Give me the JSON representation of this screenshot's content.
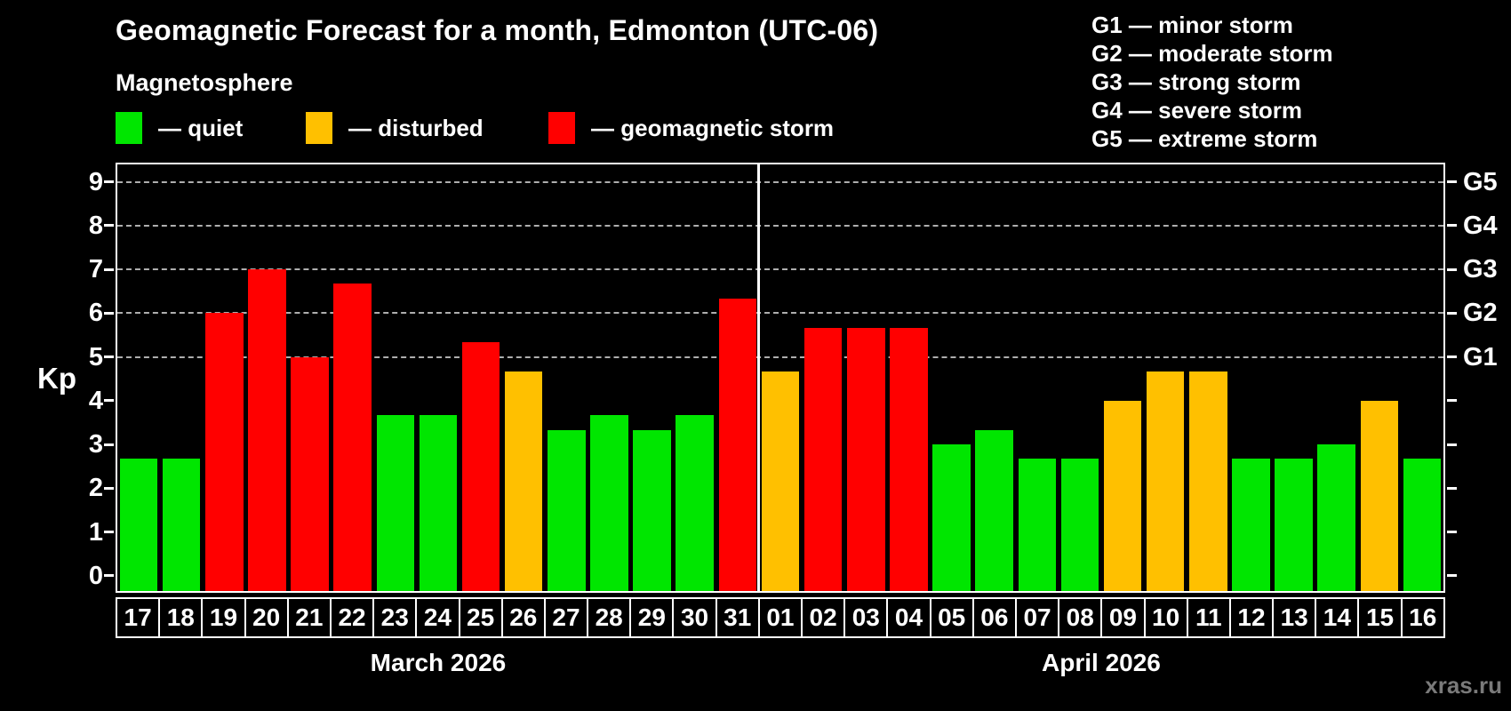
{
  "title": "Geomagnetic Forecast for a month, Edmonton (UTC-06)",
  "subtitle": "Magnetosphere",
  "legend": {
    "items": [
      {
        "label": "— quiet",
        "status": "quiet"
      },
      {
        "label": "— disturbed",
        "status": "disturbed"
      },
      {
        "label": "— geomagnetic storm",
        "status": "storm"
      }
    ]
  },
  "g_scale_legend": {
    "lines": [
      "G1 — minor storm",
      "G2 — moderate storm",
      "G3 — strong storm",
      "G4 — severe storm",
      "G5 — extreme storm"
    ]
  },
  "colors": {
    "quiet": "#00e600",
    "disturbed": "#ffc000",
    "storm": "#ff0000",
    "axis": "#ffffff",
    "grid": "#cdcdcd",
    "background": "#000000",
    "watermark": "#7a7a7a"
  },
  "watermark": "xras.ru",
  "chart_data": {
    "type": "bar",
    "title": "Geomagnetic Forecast for a month, Edmonton (UTC-06)",
    "subtitle": "Magnetosphere",
    "ylabel": "Kp",
    "ylim": [
      -0.35,
      9.4
    ],
    "y_ticks": [
      0,
      1,
      2,
      3,
      4,
      5,
      6,
      7,
      8,
      9
    ],
    "gridlines_kp": [
      5,
      6,
      7,
      8,
      9
    ],
    "grid_style": "dashed horizontal, only at Kp 5-9",
    "legend_position": "top-left",
    "right_axis": [
      {
        "label": "G1",
        "kp": 5
      },
      {
        "label": "G2",
        "kp": 6
      },
      {
        "label": "G3",
        "kp": 7
      },
      {
        "label": "G4",
        "kp": 8
      },
      {
        "label": "G5",
        "kp": 9
      }
    ],
    "months": [
      {
        "label": "March 2026",
        "days": [
          {
            "day": "17",
            "kp": 2.67,
            "status": "quiet"
          },
          {
            "day": "18",
            "kp": 2.67,
            "status": "quiet"
          },
          {
            "day": "19",
            "kp": 6.0,
            "status": "storm"
          },
          {
            "day": "20",
            "kp": 7.0,
            "status": "storm"
          },
          {
            "day": "21",
            "kp": 5.0,
            "status": "storm"
          },
          {
            "day": "22",
            "kp": 6.67,
            "status": "storm"
          },
          {
            "day": "23",
            "kp": 3.67,
            "status": "quiet"
          },
          {
            "day": "24",
            "kp": 3.67,
            "status": "quiet"
          },
          {
            "day": "25",
            "kp": 5.33,
            "status": "storm"
          },
          {
            "day": "26",
            "kp": 4.67,
            "status": "disturbed"
          },
          {
            "day": "27",
            "kp": 3.33,
            "status": "quiet"
          },
          {
            "day": "28",
            "kp": 3.67,
            "status": "quiet"
          },
          {
            "day": "29",
            "kp": 3.33,
            "status": "quiet"
          },
          {
            "day": "30",
            "kp": 3.67,
            "status": "quiet"
          },
          {
            "day": "31",
            "kp": 6.33,
            "status": "storm"
          }
        ]
      },
      {
        "label": "April 2026",
        "days": [
          {
            "day": "01",
            "kp": 4.67,
            "status": "disturbed"
          },
          {
            "day": "02",
            "kp": 5.67,
            "status": "storm"
          },
          {
            "day": "03",
            "kp": 5.67,
            "status": "storm"
          },
          {
            "day": "04",
            "kp": 5.67,
            "status": "storm"
          },
          {
            "day": "05",
            "kp": 3.0,
            "status": "quiet"
          },
          {
            "day": "06",
            "kp": 3.33,
            "status": "quiet"
          },
          {
            "day": "07",
            "kp": 2.67,
            "status": "quiet"
          },
          {
            "day": "08",
            "kp": 2.67,
            "status": "quiet"
          },
          {
            "day": "09",
            "kp": 4.0,
            "status": "disturbed"
          },
          {
            "day": "10",
            "kp": 4.67,
            "status": "disturbed"
          },
          {
            "day": "11",
            "kp": 4.67,
            "status": "disturbed"
          },
          {
            "day": "12",
            "kp": 2.67,
            "status": "quiet"
          },
          {
            "day": "13",
            "kp": 2.67,
            "status": "quiet"
          },
          {
            "day": "14",
            "kp": 3.0,
            "status": "quiet"
          },
          {
            "day": "15",
            "kp": 4.0,
            "status": "disturbed"
          },
          {
            "day": "16",
            "kp": 2.67,
            "status": "quiet"
          }
        ]
      }
    ]
  }
}
